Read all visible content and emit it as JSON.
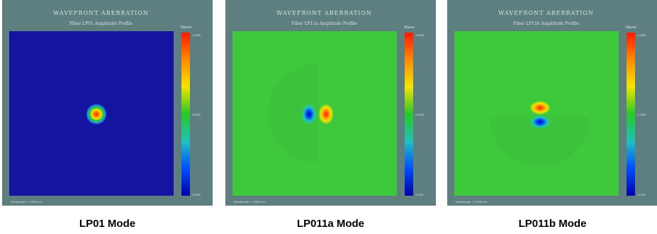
{
  "panels": [
    {
      "title": "WAVEFRONT ABERRATION",
      "subtitle": "Fiber LP01 Amplitude Profile",
      "colorbar_unit": "Waves",
      "colorbar_ticks": [
        "1.0000",
        "0.5000",
        "0.0000"
      ],
      "wavelength": "Wavelength = 1.5516 um",
      "caption": "LP01 Mode",
      "background_color": "#1414a0"
    },
    {
      "title": "WAVEFRONT ABERRATION",
      "subtitle": "Fiber LP11a Amplitude Profile",
      "colorbar_unit": "Waves",
      "colorbar_ticks": [
        "1.0000",
        "0.0000",
        "-1.000"
      ],
      "wavelength": "Wavelength = 1.5516 um",
      "caption": "LP011a Mode",
      "background_color": "#3ec83c"
    },
    {
      "title": "WAVEFRONT ABERRATION",
      "subtitle": "Fiber LP11b Amplitude Profile",
      "colorbar_unit": "Waves",
      "colorbar_ticks": [
        "1.0000",
        "0.0000",
        "-1.000"
      ],
      "wavelength": "Wavelength = 1.5516 um",
      "caption": "LP011b Mode",
      "background_color": "#3ec83c"
    }
  ],
  "colors": {
    "frame": "#5e7f7f",
    "positive_lobe": "#ff1a00",
    "negative_lobe": "#0000a8",
    "zero_level": "#3ec83c"
  }
}
